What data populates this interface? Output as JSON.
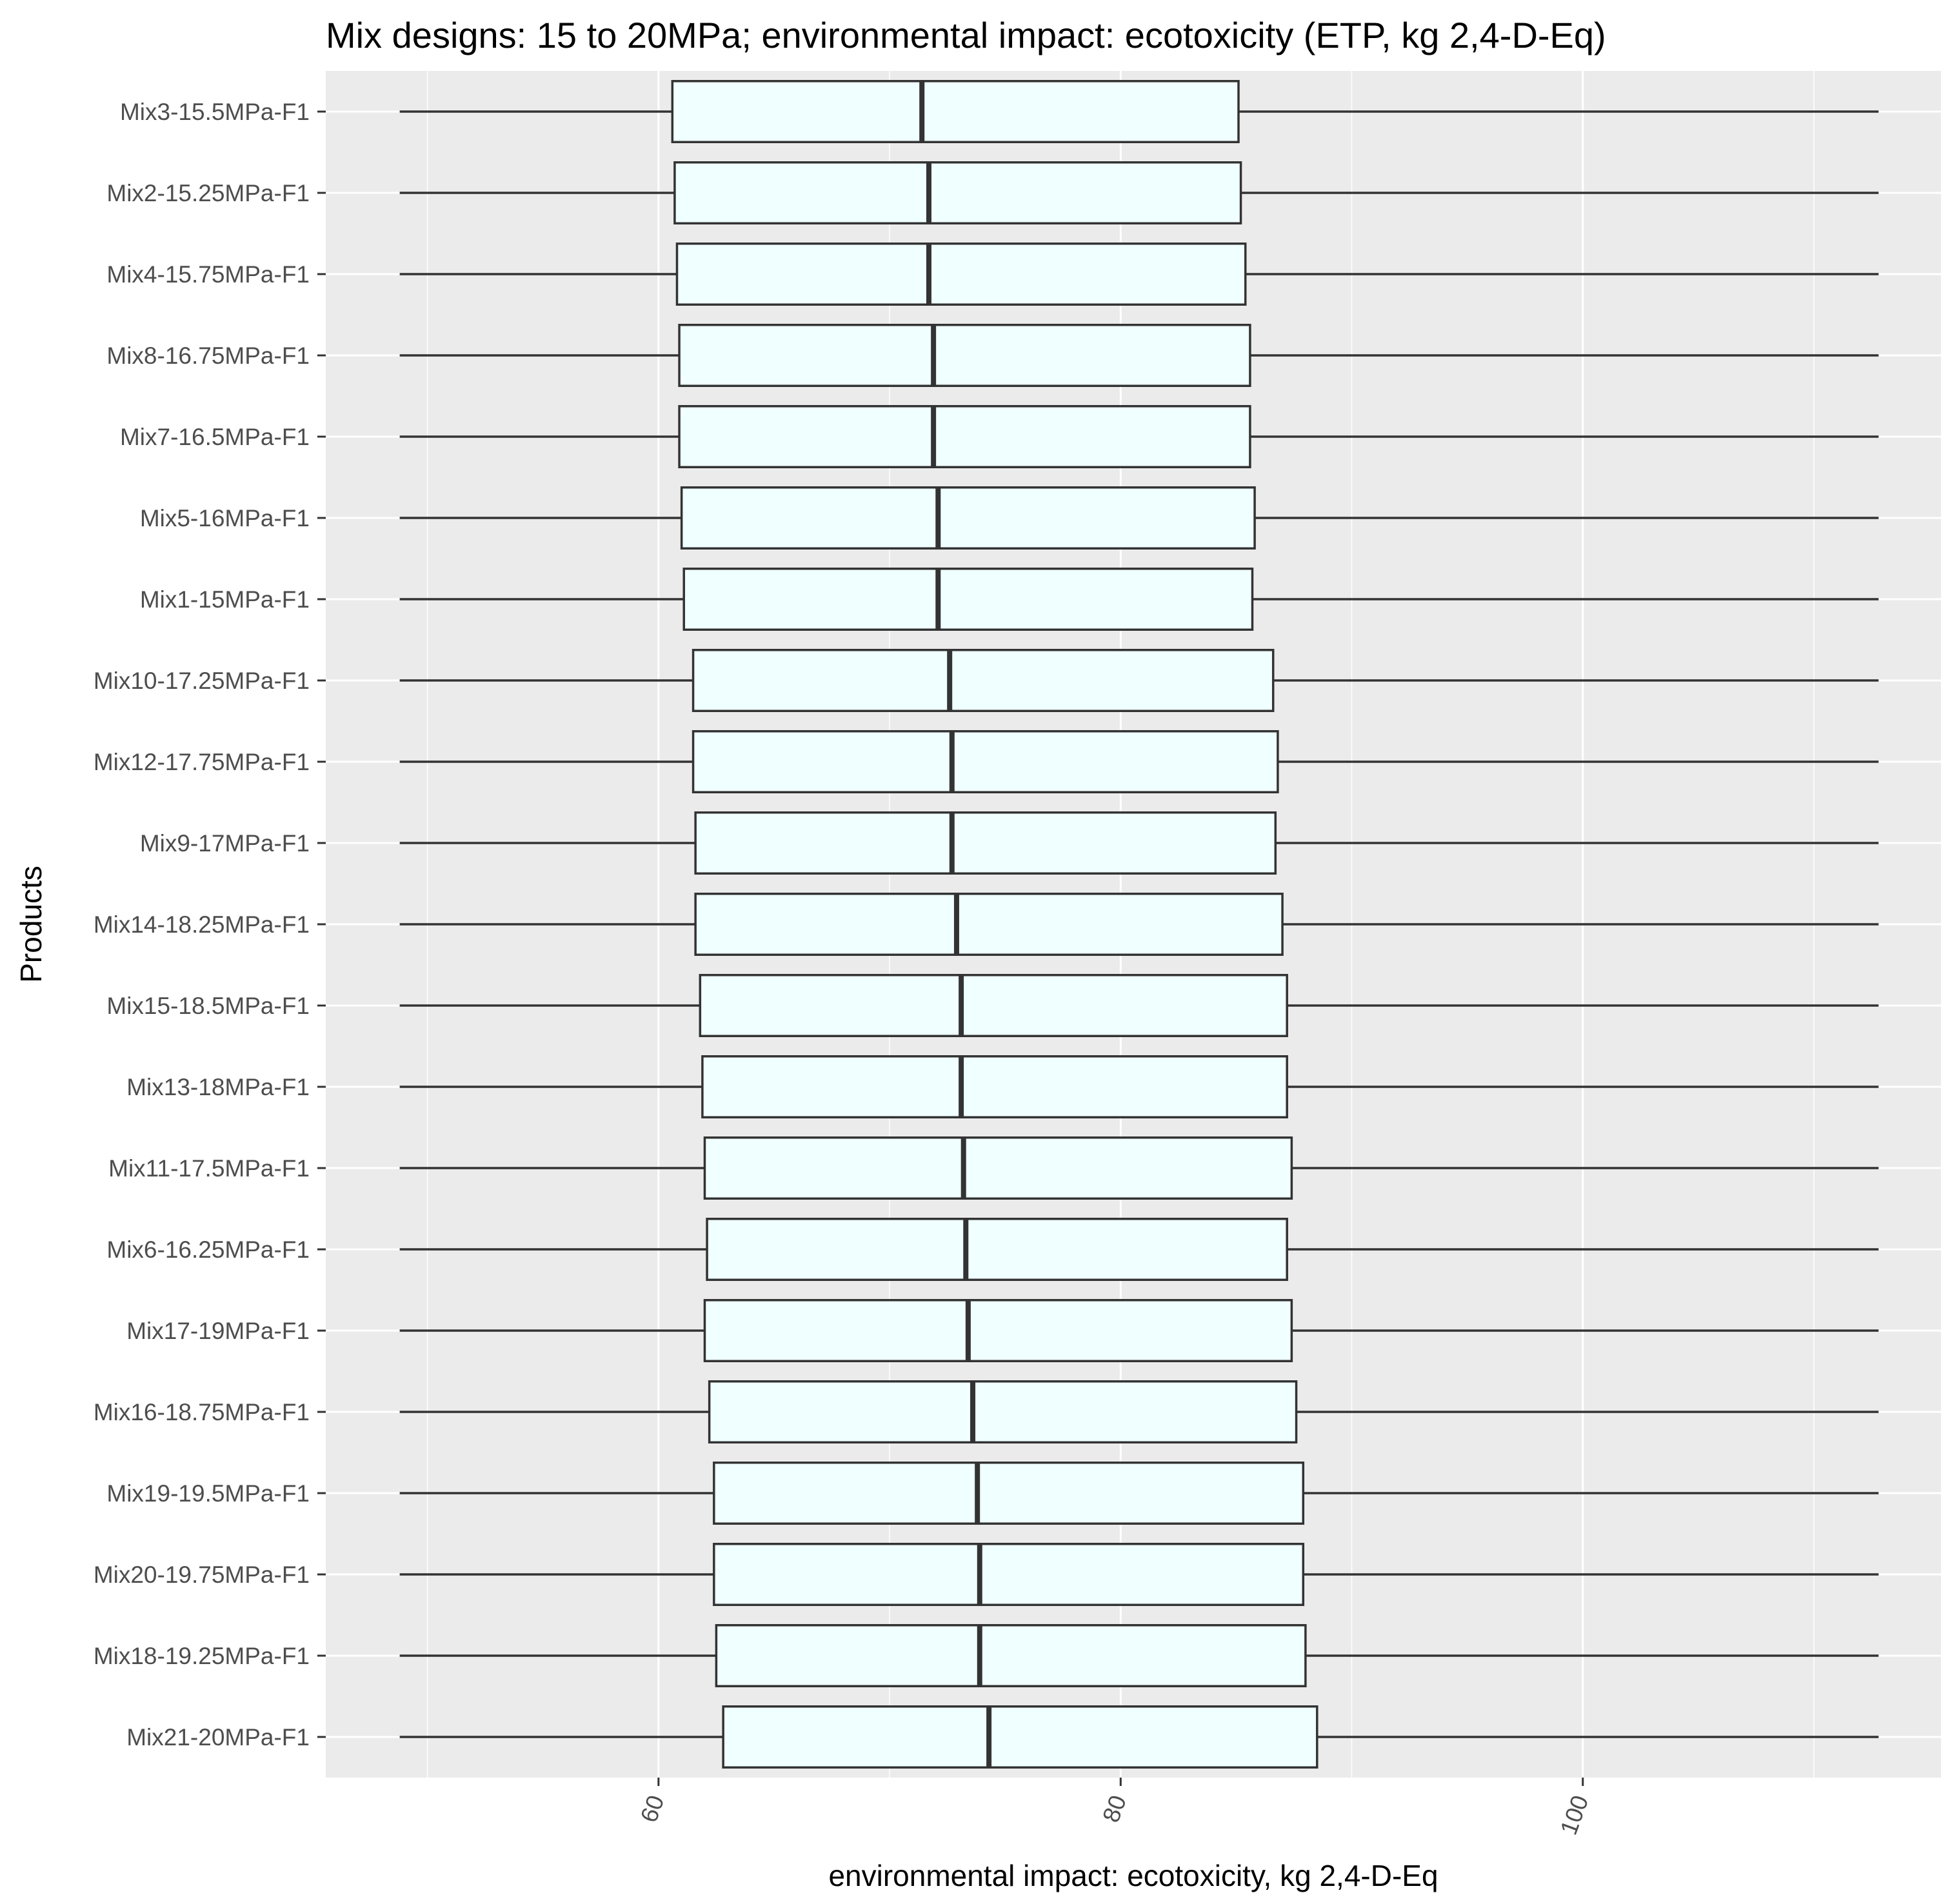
{
  "chart_data": {
    "type": "boxplot",
    "orientation": "horizontal",
    "title": "Mix designs: 15 to 20MPa; environmental impact: ecotoxicity (ETP, kg 2,4-D-Eq)",
    "xlabel": "environmental impact: ecotoxicity, kg 2,4-D-Eq",
    "ylabel": "Products",
    "xlim": [
      45.6,
      115.5
    ],
    "xticks": [
      60,
      80,
      100
    ],
    "minor_gridlines": [
      50,
      70,
      90,
      110
    ],
    "grid": true,
    "legend": "none",
    "box_fill": "#f0ffff",
    "box_stroke": "#333333",
    "panel_background": "#ebebeb",
    "categories": [
      "Mix3-15.5MPa-F1",
      "Mix2-15.25MPa-F1",
      "Mix4-15.75MPa-F1",
      "Mix8-16.75MPa-F1",
      "Mix7-16.5MPa-F1",
      "Mix5-16MPa-F1",
      "Mix1-15MPa-F1",
      "Mix10-17.25MPa-F1",
      "Mix12-17.75MPa-F1",
      "Mix9-17MPa-F1",
      "Mix14-18.25MPa-F1",
      "Mix15-18.5MPa-F1",
      "Mix13-18MPa-F1",
      "Mix11-17.5MPa-F1",
      "Mix6-16.25MPa-F1",
      "Mix17-19MPa-F1",
      "Mix16-18.75MPa-F1",
      "Mix19-19.5MPa-F1",
      "Mix20-19.75MPa-F1",
      "Mix18-19.25MPa-F1",
      "Mix21-20MPa-F1"
    ],
    "boxes": [
      {
        "min": 48.8,
        "q1": 60.6,
        "median": 71.4,
        "q3": 85.1,
        "max": 112.8
      },
      {
        "min": 48.8,
        "q1": 60.7,
        "median": 71.7,
        "q3": 85.2,
        "max": 112.8
      },
      {
        "min": 48.8,
        "q1": 60.8,
        "median": 71.7,
        "q3": 85.4,
        "max": 112.8
      },
      {
        "min": 48.8,
        "q1": 60.9,
        "median": 71.9,
        "q3": 85.6,
        "max": 112.8
      },
      {
        "min": 48.8,
        "q1": 60.9,
        "median": 71.9,
        "q3": 85.6,
        "max": 112.8
      },
      {
        "min": 48.8,
        "q1": 61.0,
        "median": 72.1,
        "q3": 85.8,
        "max": 112.8
      },
      {
        "min": 48.8,
        "q1": 61.1,
        "median": 72.1,
        "q3": 85.7,
        "max": 112.8
      },
      {
        "min": 48.8,
        "q1": 61.5,
        "median": 72.6,
        "q3": 86.6,
        "max": 112.8
      },
      {
        "min": 48.8,
        "q1": 61.5,
        "median": 72.7,
        "q3": 86.8,
        "max": 112.8
      },
      {
        "min": 48.8,
        "q1": 61.6,
        "median": 72.7,
        "q3": 86.7,
        "max": 112.8
      },
      {
        "min": 48.8,
        "q1": 61.6,
        "median": 72.9,
        "q3": 87.0,
        "max": 112.8
      },
      {
        "min": 48.8,
        "q1": 61.8,
        "median": 73.1,
        "q3": 87.2,
        "max": 112.8
      },
      {
        "min": 48.8,
        "q1": 61.9,
        "median": 73.1,
        "q3": 87.2,
        "max": 112.8
      },
      {
        "min": 48.8,
        "q1": 62.0,
        "median": 73.2,
        "q3": 87.4,
        "max": 112.8
      },
      {
        "min": 48.8,
        "q1": 62.1,
        "median": 73.3,
        "q3": 87.2,
        "max": 112.8
      },
      {
        "min": 48.8,
        "q1": 62.0,
        "median": 73.4,
        "q3": 87.4,
        "max": 112.8
      },
      {
        "min": 48.8,
        "q1": 62.2,
        "median": 73.6,
        "q3": 87.6,
        "max": 112.8
      },
      {
        "min": 48.8,
        "q1": 62.4,
        "median": 73.8,
        "q3": 87.9,
        "max": 112.8
      },
      {
        "min": 48.8,
        "q1": 62.4,
        "median": 73.9,
        "q3": 87.9,
        "max": 112.8
      },
      {
        "min": 48.8,
        "q1": 62.5,
        "median": 73.9,
        "q3": 88.0,
        "max": 112.8
      },
      {
        "min": 48.8,
        "q1": 62.8,
        "median": 74.3,
        "q3": 88.5,
        "max": 112.8
      }
    ]
  }
}
